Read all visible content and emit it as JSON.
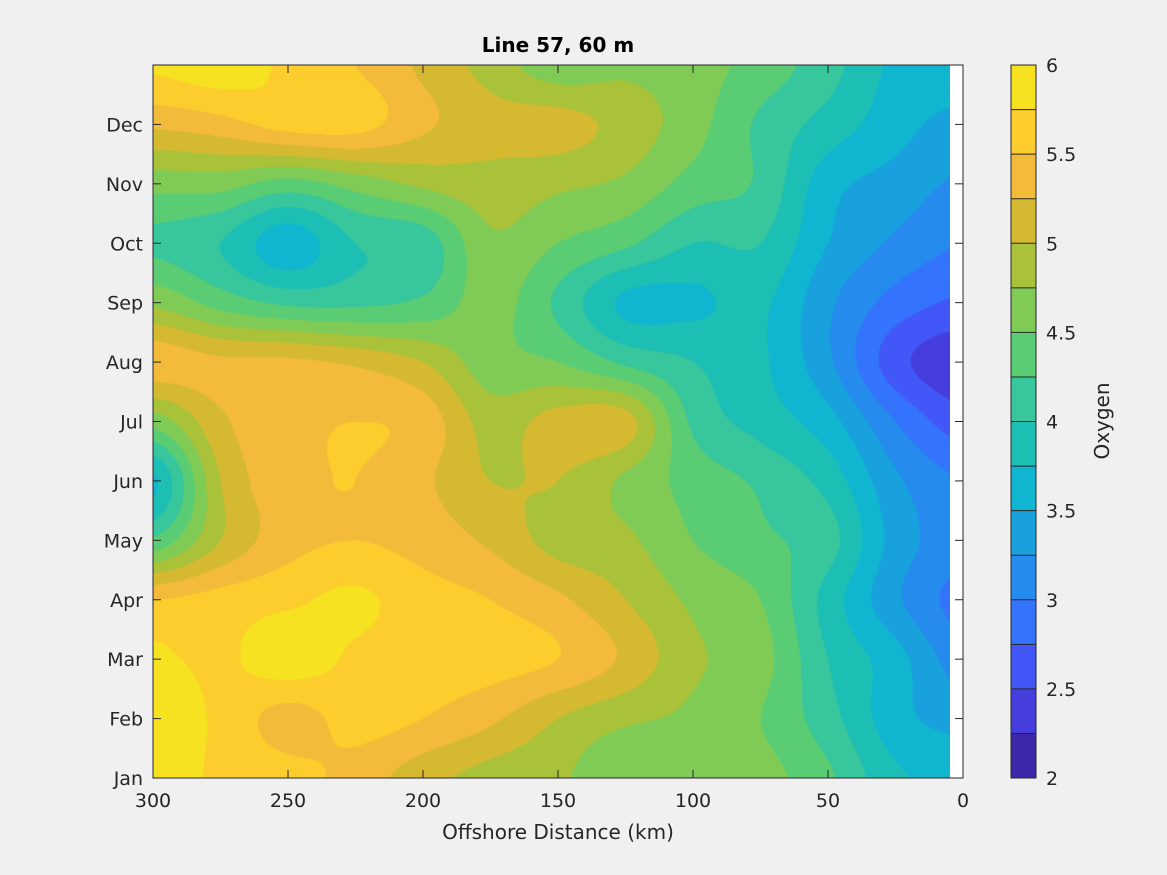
{
  "chart_data": {
    "type": "heatmap",
    "subtype": "filled-contour",
    "title": "Line 57, 60 m",
    "xlabel": "Offshore Distance (km)",
    "ylabel": "",
    "colorbar_label": "Oxygen",
    "x_reversed": true,
    "xlim": [
      0,
      300
    ],
    "xticks": [
      300,
      250,
      200,
      150,
      100,
      50,
      0
    ],
    "ylim": [
      1,
      13
    ],
    "yticks": [
      {
        "value": 1,
        "label": "Jan"
      },
      {
        "value": 2,
        "label": "Feb"
      },
      {
        "value": 3,
        "label": "Mar"
      },
      {
        "value": 4,
        "label": "Apr"
      },
      {
        "value": 5,
        "label": "May"
      },
      {
        "value": 6,
        "label": "Jun"
      },
      {
        "value": 7,
        "label": "Jul"
      },
      {
        "value": 8,
        "label": "Aug"
      },
      {
        "value": 9,
        "label": "Sep"
      },
      {
        "value": 10,
        "label": "Oct"
      },
      {
        "value": 11,
        "label": "Nov"
      },
      {
        "value": 12,
        "label": "Dec"
      }
    ],
    "clim": [
      2,
      6
    ],
    "contour_levels": [
      2,
      2.25,
      2.5,
      2.75,
      3,
      3.25,
      3.5,
      3.75,
      4,
      4.25,
      4.5,
      4.75,
      5,
      5.25,
      5.5,
      5.75,
      6
    ],
    "colorbar_ticks": [
      {
        "value": 2,
        "label": "2"
      },
      {
        "value": 2.5,
        "label": "2.5"
      },
      {
        "value": 3,
        "label": "3"
      },
      {
        "value": 3.5,
        "label": "3.5"
      },
      {
        "value": 4,
        "label": "4"
      },
      {
        "value": 4.5,
        "label": "4.5"
      },
      {
        "value": 5,
        "label": "5"
      },
      {
        "value": 5.5,
        "label": "5.5"
      },
      {
        "value": 6,
        "label": "6"
      }
    ],
    "colormap": [
      "#3e26a8",
      "#4740e5",
      "#4060fe",
      "#2c80f9",
      "#1e98e0",
      "#0db2d7",
      "#1bbfb6",
      "#3ac69a",
      "#62cd6b",
      "#8dca4a",
      "#c3bb2a",
      "#f0b53c",
      "#fdca2f",
      "#f6e220"
    ],
    "colormap_note": "parula-like, 16 bands from 2 to 6",
    "x_grid_km": [
      0,
      25,
      50,
      75,
      100,
      125,
      150,
      175,
      200,
      225,
      250,
      275,
      300
    ],
    "y_grid_month": [
      1,
      2,
      3,
      4,
      5,
      6,
      7,
      8,
      9,
      10,
      11,
      12,
      13
    ],
    "z_oxygen": [
      [
        3.7,
        3.8,
        4.3,
        4.6,
        4.7,
        4.5,
        4.8,
        4.9,
        5.1,
        5.4,
        5.6,
        5.7,
        5.9
      ],
      [
        3.4,
        3.6,
        4.1,
        4.5,
        4.7,
        4.8,
        5.0,
        5.3,
        5.5,
        5.6,
        5.4,
        5.7,
        5.9
      ],
      [
        3.1,
        3.6,
        4.0,
        4.6,
        4.8,
        5.2,
        5.5,
        5.6,
        5.6,
        5.7,
        5.9,
        5.7,
        5.8
      ],
      [
        2.9,
        3.3,
        3.9,
        4.5,
        4.7,
        5.0,
        5.3,
        5.5,
        5.6,
        5.8,
        5.7,
        5.6,
        5.5
      ],
      [
        3.1,
        3.4,
        4.1,
        4.3,
        4.5,
        4.8,
        4.9,
        5.2,
        5.4,
        5.5,
        5.4,
        5.0,
        4.3
      ],
      [
        3.0,
        3.3,
        3.9,
        4.2,
        4.4,
        4.7,
        5.0,
        5.0,
        5.3,
        5.5,
        5.4,
        5.0,
        3.7
      ],
      [
        2.6,
        3.0,
        3.6,
        3.9,
        4.2,
        5.1,
        5.1,
        4.9,
        5.4,
        5.5,
        5.4,
        5.2,
        4.6
      ],
      [
        2.3,
        2.6,
        3.3,
        3.8,
        4.0,
        4.2,
        4.5,
        4.6,
        5.0,
        5.2,
        5.3,
        5.3,
        5.4
      ],
      [
        2.7,
        2.9,
        3.3,
        3.8,
        3.7,
        3.7,
        4.2,
        4.6,
        4.3,
        4.2,
        4.2,
        4.4,
        4.7
      ],
      [
        3.0,
        3.2,
        3.5,
        4.0,
        4.0,
        4.3,
        4.5,
        4.7,
        4.1,
        4.0,
        3.6,
        4.0,
        4.2
      ],
      [
        3.2,
        3.4,
        3.6,
        4.2,
        4.4,
        4.7,
        4.8,
        4.9,
        4.8,
        4.6,
        4.4,
        4.6,
        4.6
      ],
      [
        3.4,
        3.6,
        3.9,
        4.2,
        4.6,
        4.9,
        5.1,
        5.1,
        5.3,
        5.6,
        5.6,
        5.4,
        5.3
      ],
      [
        3.7,
        3.7,
        4.1,
        4.4,
        4.6,
        4.7,
        4.6,
        4.9,
        5.2,
        5.5,
        5.7,
        5.9,
        5.8
      ]
    ]
  }
}
